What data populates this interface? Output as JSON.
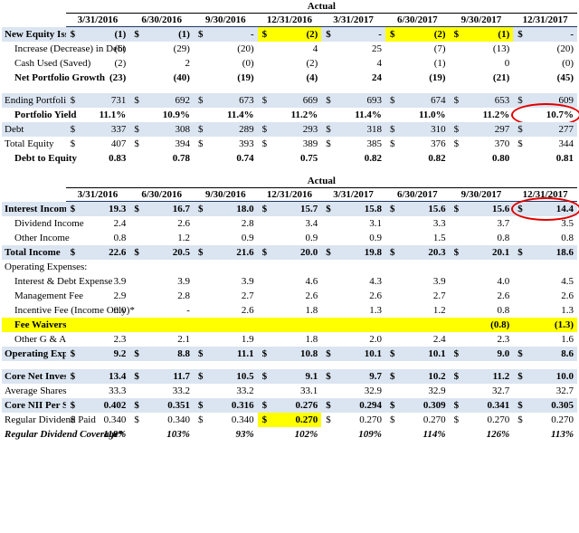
{
  "currency_symbol": "$",
  "table1": {
    "title": "Actual",
    "columns": [
      "3/31/2016",
      "6/30/2016",
      "9/30/2016",
      "12/31/2016",
      "3/31/2017",
      "6/30/2017",
      "9/30/2017",
      "12/31/2017"
    ],
    "rows": [
      {
        "label": "New Equity Issued",
        "bold": true,
        "shade": true,
        "dollar": true,
        "highlight_cells": [
          3,
          5,
          6
        ],
        "cells": [
          "(1)",
          "(1)",
          "-",
          "(2)",
          "-",
          "(2)",
          "(1)",
          "-"
        ]
      },
      {
        "label": "Increase (Decrease) in Debt",
        "indent": true,
        "cells": [
          "(6)",
          "(29)",
          "(20)",
          "4",
          "25",
          "(7)",
          "(13)",
          "(20)"
        ]
      },
      {
        "label": "Cash Used (Saved)",
        "indent": true,
        "cells": [
          "(2)",
          "2",
          "(0)",
          "(2)",
          "4",
          "(1)",
          "0",
          "(0)"
        ]
      },
      {
        "label": "Net Portfolio Growth",
        "bold": true,
        "indent": true,
        "cells": [
          "(23)",
          "(40)",
          "(19)",
          "(4)",
          "24",
          "(19)",
          "(21)",
          "(45)"
        ]
      },
      {
        "label": "Ending Portfolio",
        "gap_before": true,
        "shade": true,
        "dollar": true,
        "cells": [
          "731",
          "692",
          "673",
          "669",
          "693",
          "674",
          "653",
          "609"
        ]
      },
      {
        "label": "Portfolio Yield",
        "bold": true,
        "indent": true,
        "circled_cell": 7,
        "cells": [
          "11.1%",
          "10.9%",
          "11.4%",
          "11.2%",
          "11.4%",
          "11.0%",
          "11.2%",
          "10.7%"
        ]
      },
      {
        "label": "Debt",
        "shade": true,
        "dollar": true,
        "cells": [
          "337",
          "308",
          "289",
          "293",
          "318",
          "310",
          "297",
          "277"
        ]
      },
      {
        "label": "Total Equity",
        "dollar": true,
        "cells": [
          "407",
          "394",
          "393",
          "389",
          "385",
          "376",
          "370",
          "344"
        ]
      },
      {
        "label": "Debt to Equity",
        "bold": true,
        "indent": true,
        "cells": [
          "0.83",
          "0.78",
          "0.74",
          "0.75",
          "0.82",
          "0.82",
          "0.80",
          "0.81"
        ]
      }
    ]
  },
  "table2": {
    "title": "Actual",
    "columns": [
      "3/31/2016",
      "6/30/2016",
      "9/30/2016",
      "12/31/2016",
      "3/31/2017",
      "6/30/2017",
      "9/30/2017",
      "12/31/2017"
    ],
    "rows": [
      {
        "label": "Interest Income",
        "bold": true,
        "shade": true,
        "dollar": true,
        "circled_cell": 7,
        "cells": [
          "19.3",
          "16.7",
          "18.0",
          "15.7",
          "15.8",
          "15.6",
          "15.6",
          "14.4"
        ]
      },
      {
        "label": "Dividend Income",
        "indent": true,
        "cells": [
          "2.4",
          "2.6",
          "2.8",
          "3.4",
          "3.1",
          "3.3",
          "3.7",
          "3.5"
        ]
      },
      {
        "label": "Other Income",
        "indent": true,
        "cells": [
          "0.8",
          "1.2",
          "0.9",
          "0.9",
          "0.9",
          "1.5",
          "0.8",
          "0.8"
        ]
      },
      {
        "label": "Total Income",
        "bold": true,
        "shade": true,
        "dollar": true,
        "cells": [
          "22.6",
          "20.5",
          "21.6",
          "20.0",
          "19.8",
          "20.3",
          "20.1",
          "18.6"
        ]
      },
      {
        "label": "Operating Expenses:",
        "cells": [
          null,
          null,
          null,
          null,
          null,
          null,
          null,
          null
        ]
      },
      {
        "label": "Interest & Debt Expense",
        "indent": true,
        "cells": [
          "3.9",
          "3.9",
          "3.9",
          "4.6",
          "4.3",
          "3.9",
          "4.0",
          "4.5"
        ]
      },
      {
        "label": "Management Fee",
        "indent": true,
        "cells": [
          "2.9",
          "2.8",
          "2.7",
          "2.6",
          "2.6",
          "2.7",
          "2.6",
          "2.6"
        ]
      },
      {
        "label": "Incentive Fee (Income Only)*",
        "indent": true,
        "cells": [
          "0.0",
          "-",
          "2.6",
          "1.8",
          "1.3",
          "1.2",
          "0.8",
          "1.3"
        ]
      },
      {
        "label": "Fee Waivers",
        "bold": true,
        "indent": true,
        "highlight_row": true,
        "cells": [
          null,
          null,
          null,
          null,
          null,
          null,
          "(0.8)",
          "(1.3)"
        ]
      },
      {
        "label": "Other G & A",
        "indent": true,
        "cells": [
          "2.3",
          "2.1",
          "1.9",
          "1.8",
          "2.0",
          "2.4",
          "2.3",
          "1.6"
        ]
      },
      {
        "label": "Operating Expenses",
        "bold": true,
        "shade": true,
        "dollar": true,
        "cells": [
          "9.2",
          "8.8",
          "11.1",
          "10.8",
          "10.1",
          "10.1",
          "9.0",
          "8.6"
        ]
      },
      {
        "label": "Core Net Investment Income*",
        "bold": true,
        "gap_before": true,
        "shade": true,
        "dollar": true,
        "cells": [
          "13.4",
          "11.7",
          "10.5",
          "9.1",
          "9.7",
          "10.2",
          "11.2",
          "10.0"
        ]
      },
      {
        "label": "Average Shares",
        "cells": [
          "33.3",
          "33.2",
          "33.2",
          "33.1",
          "32.9",
          "32.9",
          "32.7",
          "32.7"
        ]
      },
      {
        "label": "Core NII Per Share*",
        "bold": true,
        "shade": true,
        "dollar": true,
        "cells": [
          "0.402",
          "0.351",
          "0.316",
          "0.276",
          "0.294",
          "0.309",
          "0.341",
          "0.305"
        ]
      },
      {
        "label": "Regular Dividend Paid",
        "dollar": true,
        "highlight_cells": [
          3
        ],
        "cells": [
          "0.340",
          "0.340",
          "0.340",
          "0.270",
          "0.270",
          "0.270",
          "0.270",
          "0.270"
        ]
      },
      {
        "label": "Regular Dividend Coverage*",
        "bold": true,
        "italic": true,
        "cells": [
          "118%",
          "103%",
          "93%",
          "102%",
          "109%",
          "114%",
          "126%",
          "113%"
        ]
      }
    ]
  }
}
